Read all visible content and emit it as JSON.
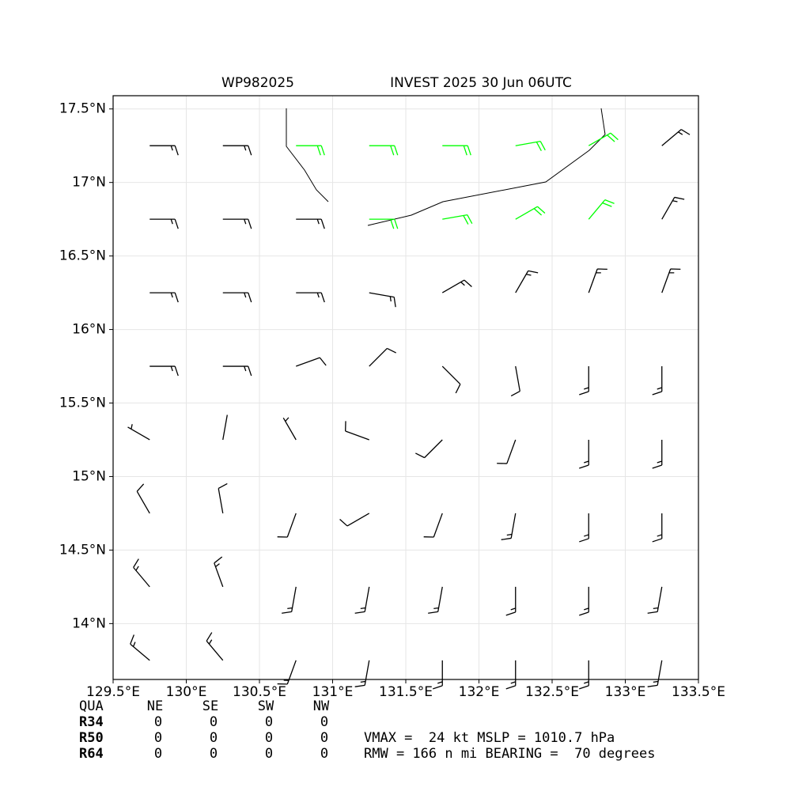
{
  "chart_data": {
    "type": "barbs",
    "title_left": "WP982025",
    "title_right": "INVEST 2025 30 Jun 06UTC",
    "x": [
      129.75,
      130.25,
      130.75,
      131.25,
      131.75,
      132.25,
      132.75,
      133.25
    ],
    "y": [
      17.25,
      16.75,
      16.25,
      15.75,
      15.25,
      14.75,
      14.25,
      13.75
    ],
    "direction": [
      [
        90,
        90,
        90,
        90,
        90,
        80,
        60,
        50
      ],
      [
        90,
        90,
        90,
        90,
        80,
        60,
        40,
        30
      ],
      [
        90,
        90,
        90,
        100,
        60,
        30,
        20,
        20
      ],
      [
        90,
        90,
        70,
        45,
        135,
        170,
        180,
        180
      ],
      [
        300,
        10,
        330,
        290,
        225,
        200,
        180,
        180
      ],
      [
        330,
        350,
        200,
        240,
        200,
        190,
        180,
        180
      ],
      [
        320,
        340,
        190,
        190,
        190,
        180,
        180,
        190
      ],
      [
        310,
        320,
        200,
        190,
        180,
        180,
        180,
        190
      ]
    ],
    "speed": [
      [
        15,
        15,
        21,
        21,
        22,
        22,
        21,
        18
      ],
      [
        15,
        15,
        16,
        21,
        22,
        21,
        20,
        18
      ],
      [
        15,
        15,
        15,
        15,
        15,
        15,
        15,
        15
      ],
      [
        15,
        15,
        12,
        10,
        10,
        12,
        15,
        15
      ],
      [
        5,
        3,
        8,
        10,
        10,
        12,
        15,
        15
      ],
      [
        12,
        12,
        12,
        12,
        12,
        15,
        15,
        15
      ],
      [
        15,
        15,
        15,
        15,
        15,
        15,
        15,
        15
      ],
      [
        15,
        15,
        15,
        15,
        15,
        15,
        15,
        15
      ]
    ],
    "colors": [
      [
        "#000000",
        "#000000",
        "#00ff00",
        "#00ff00",
        "#00ff00",
        "#00ff00",
        "#00ff00",
        "#000000"
      ],
      [
        "#000000",
        "#000000",
        "#000000",
        "#00ff00",
        "#00ff00",
        "#00ff00",
        "#00ff00",
        "#000000"
      ],
      [
        "#000000",
        "#000000",
        "#000000",
        "#000000",
        "#000000",
        "#000000",
        "#000000",
        "#000000"
      ],
      [
        "#000000",
        "#000000",
        "#000000",
        "#000000",
        "#000000",
        "#000000",
        "#000000",
        "#000000"
      ],
      [
        "#000000",
        "#000000",
        "#000000",
        "#000000",
        "#000000",
        "#000000",
        "#000000",
        "#000000"
      ],
      [
        "#000000",
        "#000000",
        "#000000",
        "#000000",
        "#000000",
        "#000000",
        "#000000",
        "#000000"
      ],
      [
        "#000000",
        "#000000",
        "#000000",
        "#000000",
        "#000000",
        "#000000",
        "#000000",
        "#000000"
      ],
      [
        "#000000",
        "#000000",
        "#000000",
        "#000000",
        "#000000",
        "#000000",
        "#000000",
        "#000000"
      ]
    ],
    "xlim": [
      129.5,
      133.5
    ],
    "ylim": [
      13.62,
      17.59
    ],
    "xticks": [
      {
        "value": 129.5,
        "label": "129.5°E"
      },
      {
        "value": 130,
        "label": "130°E"
      },
      {
        "value": 130.5,
        "label": "130.5°E"
      },
      {
        "value": 131,
        "label": "131°E"
      },
      {
        "value": 131.5,
        "label": "131.5°E"
      },
      {
        "value": 132,
        "label": "132°E"
      },
      {
        "value": 132.5,
        "label": "132.5°E"
      },
      {
        "value": 133,
        "label": "133°E"
      },
      {
        "value": 133.5,
        "label": "133.5°E"
      }
    ],
    "yticks": [
      {
        "value": 14,
        "label": "14°N"
      },
      {
        "value": 14.5,
        "label": "14.5°N"
      },
      {
        "value": 15,
        "label": "15°N"
      },
      {
        "value": 15.5,
        "label": "15.5°N"
      },
      {
        "value": 16,
        "label": "16°N"
      },
      {
        "value": 16.5,
        "label": "16.5°N"
      },
      {
        "value": 17,
        "label": "17°N"
      },
      {
        "value": 17.5,
        "label": "17.5°N"
      }
    ],
    "grid": true
  },
  "table": {
    "header": [
      "QUA",
      "NE",
      "SE",
      "SW",
      "NW"
    ],
    "rows": [
      [
        "R34",
        0,
        0,
        0,
        0
      ],
      [
        "R50",
        0,
        0,
        0,
        0
      ],
      [
        "R64",
        0,
        0,
        0,
        0
      ]
    ]
  },
  "info": [
    "VMAX =  24 kt MSLP = 1010.7 hPa",
    "RMW = 166 n mi BEARING =  70 degrees"
  ]
}
